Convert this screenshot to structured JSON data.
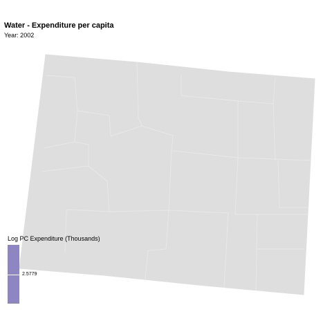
{
  "header": {
    "title": "Water - Expenditure per capita",
    "subtitle": "Year: 2002"
  },
  "map": {
    "region": "Wyoming counties",
    "fill_color": "#dedede",
    "border_color": "#e9e9e9"
  },
  "legend": {
    "title": "Log PC Expenditure (Thousands)",
    "value_label": "2.5779",
    "bar_color": "#8e86c2"
  }
}
